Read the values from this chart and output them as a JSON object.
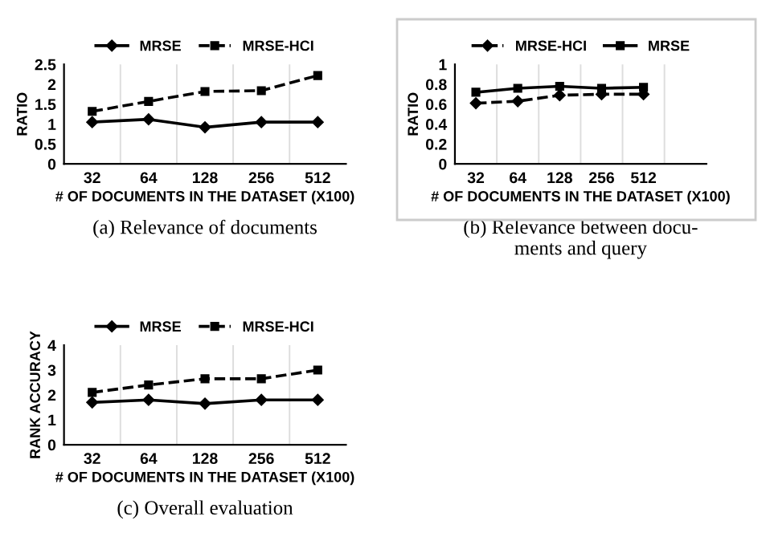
{
  "chart_data": [
    {
      "type": "line",
      "categories": [
        "32",
        "64",
        "128",
        "256",
        "512"
      ],
      "xlabel": "# OF DOCUMENTS IN THE DATASET (X100)",
      "ylabel": "RATIO",
      "ylim": [
        0,
        2.5
      ],
      "yticks": [
        0,
        0.5,
        1,
        1.5,
        2,
        2.5
      ],
      "grid": "x",
      "legend": "top",
      "annotations": [
        "(a) Relevance of documents"
      ],
      "series": [
        {
          "name": "MRSE",
          "color": "#000000",
          "marker": "diamond",
          "line_style": "solid",
          "values": [
            1.05,
            1.12,
            0.92,
            1.05,
            1.05
          ]
        },
        {
          "name": "MRSE-HCI",
          "color": "#000000",
          "marker": "square",
          "line_style": "dashed",
          "values": [
            1.32,
            1.57,
            1.82,
            1.84,
            2.22
          ]
        }
      ]
    },
    {
      "type": "line",
      "categories": [
        "32",
        "64",
        "128",
        "256",
        "512",
        null
      ],
      "xlabel": "# OF DOCUMENTS IN THE DATASET (X100)",
      "ylabel": "RATIO",
      "ylim": [
        0,
        1
      ],
      "yticks": [
        0,
        0.2,
        0.4,
        0.6,
        0.8,
        1
      ],
      "grid": "x",
      "legend": "top",
      "annotations": [
        "(b) Relevance between docu-\nments and query"
      ],
      "series": [
        {
          "name": "MRSE-HCI",
          "color": "#000000",
          "marker": "diamond",
          "line_style": "dashed",
          "values": [
            0.61,
            0.63,
            0.69,
            0.7,
            0.7,
            null
          ]
        },
        {
          "name": "MRSE",
          "color": "#000000",
          "marker": "square",
          "line_style": "solid",
          "values": [
            0.72,
            0.76,
            0.78,
            0.76,
            0.77,
            null
          ]
        }
      ]
    },
    {
      "type": "line",
      "categories": [
        "32",
        "64",
        "128",
        "256",
        "512"
      ],
      "xlabel": "# OF DOCUMENTS IN THE DATASET (X100)",
      "ylabel": "RANK ACCURACY",
      "ylim": [
        0,
        4
      ],
      "yticks": [
        0,
        1,
        2,
        3,
        4
      ],
      "grid": "x",
      "legend": "top",
      "annotations": [
        "(c) Overall evaluation"
      ],
      "series": [
        {
          "name": "MRSE",
          "color": "#000000",
          "marker": "diamond",
          "line_style": "solid",
          "values": [
            1.7,
            1.8,
            1.65,
            1.8,
            1.8
          ]
        },
        {
          "name": "MRSE-HCI",
          "color": "#000000",
          "marker": "square",
          "line_style": "dashed",
          "values": [
            2.1,
            2.4,
            2.65,
            2.65,
            3.0
          ]
        }
      ]
    }
  ]
}
